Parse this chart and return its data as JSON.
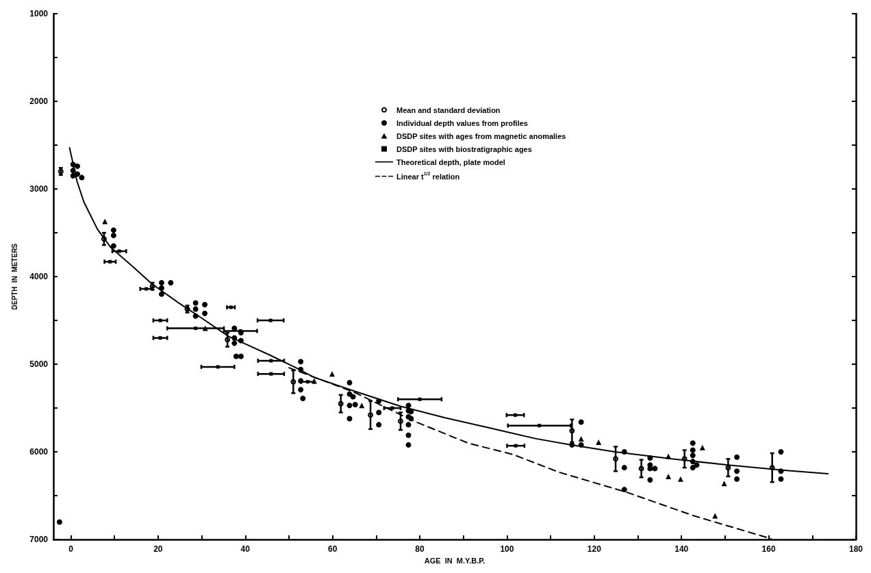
{
  "chart_data": {
    "type": "scatter",
    "xlabel": "AGE  IN  M.Y.B.P.",
    "ylabel": "DEPTH  IN  METERS",
    "xlim": [
      -4,
      180
    ],
    "ylim": [
      7000,
      1000
    ],
    "xticks": [
      0,
      {
        "value": 10,
        "label": null
      },
      20,
      {
        "value": 30,
        "label": null
      },
      40,
      {
        "value": 50,
        "label": null
      },
      60,
      {
        "value": 70,
        "label": null
      },
      80,
      {
        "value": 90,
        "label": null
      },
      100,
      {
        "value": 110,
        "label": null
      },
      120,
      {
        "value": 130,
        "label": null
      },
      140,
      {
        "value": 150,
        "label": null
      },
      160,
      {
        "value": 170,
        "label": null
      },
      180
    ],
    "yticks": [
      1000,
      {
        "value": 1500,
        "label": null
      },
      2000,
      {
        "value": 2500,
        "label": null
      },
      3000,
      {
        "value": 3500,
        "label": null
      },
      4000,
      {
        "value": 4500,
        "label": null
      },
      5000,
      {
        "value": 5500,
        "label": null
      },
      6000,
      {
        "value": 6500,
        "label": null
      },
      7000
    ],
    "legend": "top",
    "grid": false,
    "series": [
      {
        "name": "Mean and standard deviation",
        "marker": "circle",
        "color": "#000000",
        "x": [
          -2.3,
          7.6,
          18.7,
          26.7,
          35.9,
          51.0,
          61.9,
          68.7,
          75.6,
          114.9,
          124.9,
          130.8,
          140.7,
          150.7,
          160.8
        ],
        "values": [
          2800,
          3570,
          4110,
          4370,
          4720,
          5200,
          5450,
          5580,
          5650,
          5760,
          6080,
          6190,
          6080,
          6180,
          6180
        ],
        "errors": [
          40,
          70,
          40,
          40,
          80,
          130,
          100,
          160,
          100,
          130,
          140,
          100,
          100,
          100,
          165
        ]
      },
      {
        "name": "Individual depth values from profiles",
        "marker": "circle",
        "color": "#000000",
        "x": [
          0.5,
          0.5,
          0.5,
          1.5,
          1.5,
          2.5,
          9.8,
          9.8,
          9.8,
          20.8,
          20.8,
          20.8,
          22.9,
          28.6,
          28.6,
          28.6,
          30.7,
          30.7,
          37.5,
          37.5,
          37.5,
          39,
          39,
          37.9,
          39,
          52.7,
          52.7,
          52.7,
          52.7,
          53.2,
          63.9,
          63.9,
          63.9,
          63.9,
          64.7,
          65.2,
          70.6,
          70.6,
          70.6,
          77.4,
          77.4,
          77.4,
          77.4,
          77.4,
          77.4,
          78,
          78,
          114.9,
          117,
          117,
          126.9,
          126.9,
          126.9,
          132.8,
          132.8,
          132.8,
          132.8,
          133.9,
          142.6,
          142.6,
          142.6,
          142.6,
          142.6,
          143.5,
          152.7,
          152.7,
          152.7,
          162.8,
          162.8,
          162.8,
          -2.6
        ],
        "values": [
          2720,
          2790,
          2850,
          2740,
          2830,
          2870,
          3470,
          3530,
          3650,
          4070,
          4130,
          4200,
          4070,
          4300,
          4370,
          4450,
          4320,
          4420,
          4590,
          4700,
          4760,
          4640,
          4730,
          4910,
          4910,
          4970,
          5060,
          5190,
          5290,
          5390,
          5210,
          5340,
          5470,
          5620,
          5370,
          5460,
          5420,
          5550,
          5690,
          5470,
          5530,
          5600,
          5690,
          5810,
          5920,
          5540,
          5620,
          5920,
          5660,
          5920,
          6000,
          6180,
          6430,
          6070,
          6150,
          6190,
          6320,
          6190,
          5900,
          5980,
          6040,
          6110,
          6180,
          6150,
          6060,
          6220,
          6310,
          6000,
          6220,
          6310,
          6800
        ]
      },
      {
        "name": "DSDP sites with ages from magnetic anomalies",
        "marker": "triangle",
        "color": "#000000",
        "x": [
          7.8,
          30.8,
          55.8,
          59.9,
          66.7,
          117,
          121,
          137,
          137,
          139.8,
          144.8,
          149.8,
          147.7
        ],
        "values": [
          3370,
          4590,
          5190,
          5110,
          5470,
          5850,
          5890,
          6050,
          6280,
          6310,
          5950,
          6360,
          6730
        ]
      },
      {
        "name": "DSDP sites with biostratigraphic ages",
        "marker": "square",
        "color": "#000000",
        "x": [
          11.1,
          9.0,
          17.3,
          20.5,
          20.5,
          28.6,
          38.9,
          36.7,
          45.8,
          33.7,
          45.9,
          45.9,
          54.3,
          73.7,
          80,
          101.9,
          107.4,
          102
        ],
        "values": [
          3710,
          3830,
          4140,
          4500,
          4700,
          4590,
          4620,
          4350,
          4500,
          5030,
          4960,
          5110,
          5200,
          5500,
          5400,
          5580,
          5700,
          5930
        ],
        "xerrors": [
          1.6,
          1.3,
          1.4,
          1.6,
          1.6,
          6.5,
          3.8,
          0.9,
          3.0,
          3.8,
          3.0,
          3.0,
          1.5,
          1.9,
          5,
          2,
          7.2,
          2
        ]
      },
      {
        "name": "Theoretical depth, plate model",
        "type": "line",
        "marker": "none",
        "line_style": "solid",
        "color": "#000000",
        "x": [
          -0.3,
          1.4,
          3,
          6.1,
          9.2,
          14.3,
          18.5,
          24.7,
          29.9,
          36.1,
          45.4,
          51.6,
          55.8,
          65.2,
          75.6,
          85.8,
          96.3,
          106.7,
          114.6,
          124.7,
          137.8,
          150.7,
          163.6,
          173.6
        ],
        "values": [
          2530,
          2910,
          3150,
          3460,
          3670,
          3890,
          4080,
          4300,
          4470,
          4680,
          4890,
          5040,
          5150,
          5310,
          5480,
          5610,
          5730,
          5850,
          5920,
          6000,
          6080,
          6150,
          6210,
          6250
        ]
      },
      {
        "name": "Linear t$^{1/2}$ relation",
        "type": "line",
        "marker": "none",
        "line_style": "dashed",
        "color": "#000000",
        "x": [
          50,
          65,
          78.7,
          91.1,
          101.4,
          111.8,
          127.4,
          142.9,
          160.5
        ],
        "values": [
          5040,
          5320,
          5650,
          5900,
          6030,
          6230,
          6460,
          6730,
          6990
        ]
      }
    ]
  }
}
